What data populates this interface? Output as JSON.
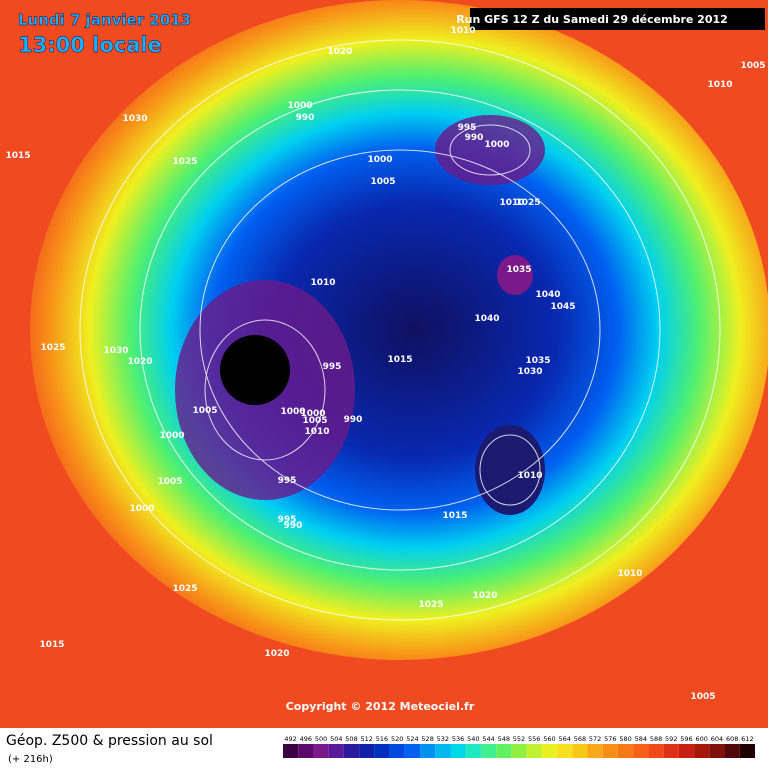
{
  "header": {
    "date": "Lundi 7 janvier 2013",
    "time": "13:00 locale",
    "run": "Run GFS 12 Z du Samedi 29 décembre 2012"
  },
  "map": {
    "copyright": "Copyright © 2012 Meteociel.fr",
    "isobar_labels": [
      "1010",
      "1005",
      "1010",
      "1020",
      "1030",
      "1015",
      "1025",
      "1000",
      "990",
      "995",
      "990",
      "1000",
      "1000",
      "1005",
      "1010",
      "1025",
      "1035",
      "1040",
      "1045",
      "1040",
      "1010",
      "1025",
      "1030",
      "1020",
      "995",
      "1015",
      "1035",
      "1030",
      "1005",
      "1000",
      "1000",
      "1005",
      "1010",
      "990",
      "1000",
      "1010",
      "995",
      "1005",
      "995",
      "990",
      "1000",
      "1015",
      "1010",
      "1025",
      "1020",
      "1025",
      "1015",
      "1020",
      "1005"
    ]
  },
  "footer": {
    "title": "Géop. Z500 & pression au sol",
    "lead": "(+ 216h)"
  },
  "legend": {
    "levels": [
      492,
      496,
      500,
      504,
      508,
      512,
      516,
      520,
      524,
      528,
      532,
      536,
      540,
      544,
      548,
      552,
      556,
      560,
      564,
      568,
      572,
      576,
      580,
      584,
      588,
      592,
      596,
      600,
      604,
      608,
      612
    ],
    "colors": [
      "#3a0040",
      "#5a0a6a",
      "#7a1a8a",
      "#5a1a9a",
      "#2a1aa0",
      "#1020a8",
      "#0030c0",
      "#0048e0",
      "#0060f0",
      "#0090f0",
      "#00b8f0",
      "#00d8e8",
      "#20e8c0",
      "#40f090",
      "#60f060",
      "#90f040",
      "#c0f030",
      "#e8f020",
      "#f8e020",
      "#f8c818",
      "#f8a818",
      "#f89018",
      "#f87818",
      "#f86018",
      "#f04818",
      "#e03018",
      "#c82010",
      "#a81808",
      "#801008",
      "#500808",
      "#200000"
    ]
  }
}
